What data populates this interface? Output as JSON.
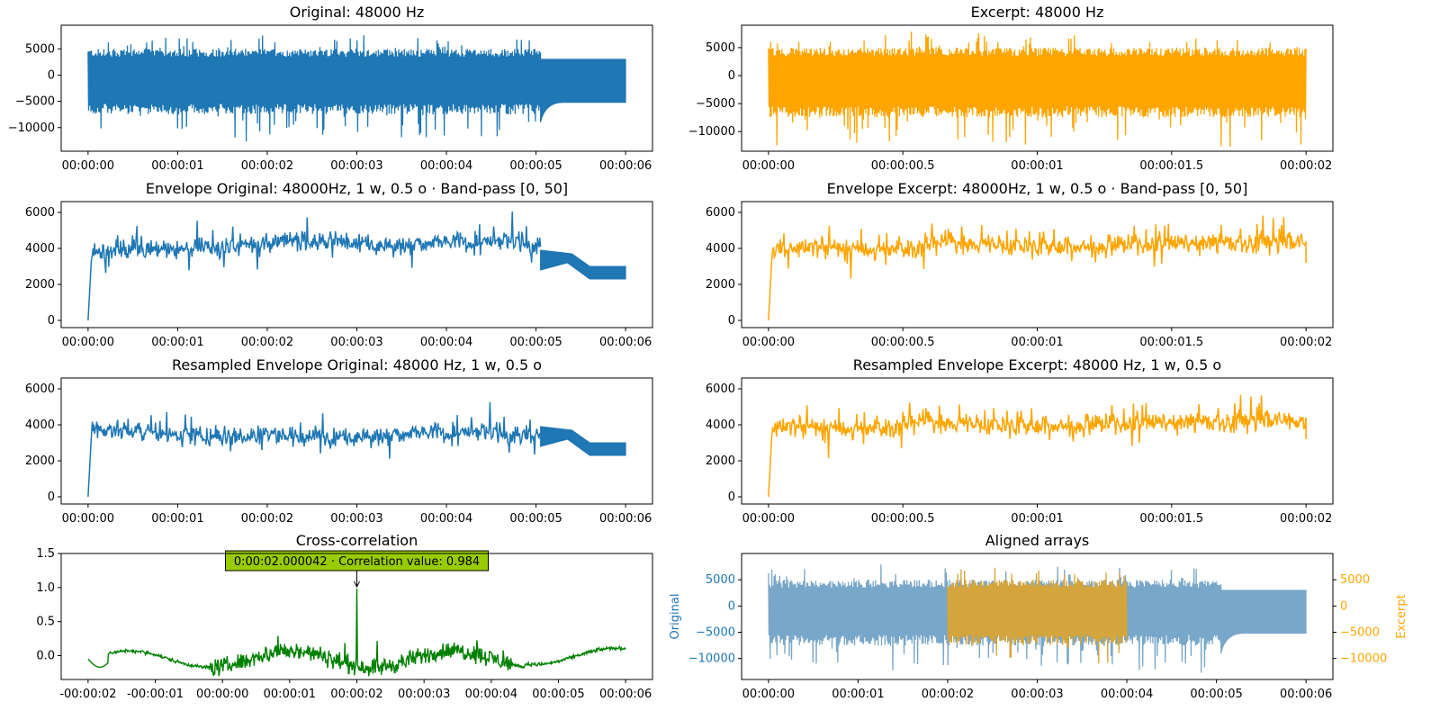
{
  "figure": {
    "background": "#ffffff"
  },
  "colors": {
    "original": "#1f77b4",
    "excerpt": "#ffa500",
    "correlation": "#008000",
    "overlay_original": "#79a7c9",
    "overlay_excerpt": "#d4a53d",
    "annotation_box": "#99cc00"
  },
  "chart_data": [
    {
      "id": "original",
      "type": "line",
      "title": "Original: 48000 Hz",
      "series": [
        {
          "color": "#1f77b4",
          "style": "dense-waveform",
          "x": [
            0,
            5.05,
            6.0
          ],
          "amplitude_peak_max": 8000,
          "amplitude_peak_min": -13000,
          "tail": {
            "from": 5.05,
            "to": 6.0,
            "max": 3000,
            "min": -5200
          }
        }
      ],
      "x_ticks": [
        "00:00:00",
        "00:00:01",
        "00:00:02",
        "00:00:03",
        "00:00:04",
        "00:00:05",
        "00:00:06"
      ],
      "xlim": [
        -0.3,
        6.3
      ],
      "y_ticks": [
        5000,
        0,
        -5000,
        -10000
      ],
      "ylim": [
        -14500,
        9500
      ]
    },
    {
      "id": "excerpt",
      "type": "line",
      "title": "Excerpt: 48000 Hz",
      "series": [
        {
          "color": "#ffa500",
          "style": "dense-waveform",
          "x": [
            0,
            2.0
          ],
          "amplitude_peak_max": 8200,
          "amplitude_peak_min": -12800
        }
      ],
      "x_ticks": [
        "00:00:00",
        "00:00:00.5",
        "00:00:01",
        "00:00:01.5",
        "00:00:02"
      ],
      "xlim": [
        -0.1,
        2.1
      ],
      "y_ticks": [
        5000,
        0,
        -5000,
        -10000
      ],
      "ylim": [
        -13500,
        9000
      ]
    },
    {
      "id": "env_original",
      "type": "line",
      "title": "Envelope Original: 48000Hz, 1 w, 0.5 o · Band-pass [0, 50]",
      "series": [
        {
          "color": "#1f77b4",
          "style": "envelope",
          "x_range": [
            0,
            6.0
          ],
          "start_value": 0,
          "mean": 3800,
          "peak_max": 6200,
          "min_after_rise": 1500,
          "tail": {
            "from": 5.05,
            "to": 6.0,
            "start_top": 3900,
            "end_top": 3000,
            "end_bottom": 2300
          }
        }
      ],
      "x_ticks": [
        "00:00:00",
        "00:00:01",
        "00:00:02",
        "00:00:03",
        "00:00:04",
        "00:00:05",
        "00:00:06"
      ],
      "xlim": [
        -0.3,
        6.3
      ],
      "y_ticks": [
        6000,
        4000,
        2000,
        0
      ],
      "ylim": [
        -400,
        6600
      ]
    },
    {
      "id": "env_excerpt",
      "type": "line",
      "title": "Envelope Excerpt: 48000Hz, 1 w, 0.5 o · Band-pass [0, 50]",
      "series": [
        {
          "color": "#ffa500",
          "style": "envelope",
          "x_range": [
            0,
            2.0
          ],
          "start_value": 0,
          "mean": 3900,
          "peak_max": 6200,
          "min_after_rise": 2100,
          "end_value": 3200
        }
      ],
      "x_ticks": [
        "00:00:00",
        "00:00:00.5",
        "00:00:01",
        "00:00:01.5",
        "00:00:02"
      ],
      "xlim": [
        -0.1,
        2.1
      ],
      "y_ticks": [
        6000,
        4000,
        2000,
        0
      ],
      "ylim": [
        -400,
        6600
      ]
    },
    {
      "id": "res_original",
      "type": "line",
      "title": "Resampled Envelope Original: 48000 Hz, 1 w, 0.5 o",
      "series": [
        {
          "color": "#1f77b4",
          "style": "envelope",
          "x_range": [
            0,
            6.0
          ],
          "start_value": 0,
          "mean": 3800,
          "peak_max": 6200,
          "min_after_rise": 1500,
          "tail": {
            "from": 5.05,
            "to": 6.0,
            "start_top": 3900,
            "end_top": 3000,
            "end_bottom": 2300
          }
        }
      ],
      "x_ticks": [
        "00:00:00",
        "00:00:01",
        "00:00:02",
        "00:00:03",
        "00:00:04",
        "00:00:05",
        "00:00:06"
      ],
      "xlim": [
        -0.3,
        6.3
      ],
      "y_ticks": [
        6000,
        4000,
        2000,
        0
      ],
      "ylim": [
        -400,
        6600
      ]
    },
    {
      "id": "res_excerpt",
      "type": "line",
      "title": "Resampled Envelope Excerpt: 48000 Hz, 1 w, 0.5 o",
      "series": [
        {
          "color": "#ffa500",
          "style": "envelope",
          "x_range": [
            0,
            2.0
          ],
          "start_value": 0,
          "mean": 3900,
          "peak_max": 6200,
          "min_after_rise": 2100,
          "end_value": 3200
        }
      ],
      "x_ticks": [
        "00:00:00",
        "00:00:00.5",
        "00:00:01",
        "00:00:01.5",
        "00:00:02"
      ],
      "xlim": [
        -0.1,
        2.1
      ],
      "y_ticks": [
        6000,
        4000,
        2000,
        0
      ],
      "ylim": [
        -400,
        6600
      ]
    },
    {
      "id": "xcorr",
      "type": "line",
      "title": "Cross-correlation",
      "series": [
        {
          "color": "#008000",
          "style": "correlation",
          "x_range": [
            -2,
            6
          ],
          "peak": {
            "x": 2.0,
            "y": 0.984
          }
        }
      ],
      "x_ticks": [
        "-00:00:02",
        "-00:00:01",
        "00:00:00",
        "00:00:01",
        "00:00:02",
        "00:00:03",
        "00:00:04",
        "00:00:05",
        "00:00:06"
      ],
      "xlim": [
        -2.4,
        6.4
      ],
      "y_ticks": [
        1.5,
        1.0,
        0.5,
        0.0
      ],
      "ylim": [
        -0.35,
        1.5
      ],
      "annotation": {
        "text": "0:00:02.000042 · Correlation value: 0.984",
        "x": 2.0,
        "y": 0.984
      }
    },
    {
      "id": "aligned",
      "type": "line",
      "title": "Aligned arrays",
      "series": [
        {
          "axis": "left",
          "color": "#79a7c9",
          "style": "dense-waveform",
          "x": [
            0,
            5.05,
            6.0
          ],
          "amplitude_peak_max": 8000,
          "amplitude_peak_min": -13000,
          "tail": {
            "from": 5.05,
            "to": 6.0,
            "max": 3000,
            "min": -5200
          }
        },
        {
          "axis": "right",
          "color": "#d4a53d",
          "style": "dense-waveform",
          "x": [
            2.0,
            4.0
          ],
          "amplitude_peak_max": 8200,
          "amplitude_peak_min": -12800
        }
      ],
      "x_ticks": [
        "00:00:00",
        "00:00:01",
        "00:00:02",
        "00:00:03",
        "00:00:04",
        "00:00:05",
        "00:00:06"
      ],
      "xlim": [
        -0.3,
        6.3
      ],
      "y_ticks": [
        5000,
        0,
        -5000,
        -10000
      ],
      "ylim": [
        -14000,
        10000
      ],
      "y2_ticks": [
        5000,
        0,
        -5000,
        -10000
      ],
      "y2lim": [
        -14000,
        10000
      ],
      "ylabel": "Original",
      "ylabel_color": "#1f77b4",
      "y2label": "Excerpt",
      "y2label_color": "#ffa500"
    }
  ]
}
